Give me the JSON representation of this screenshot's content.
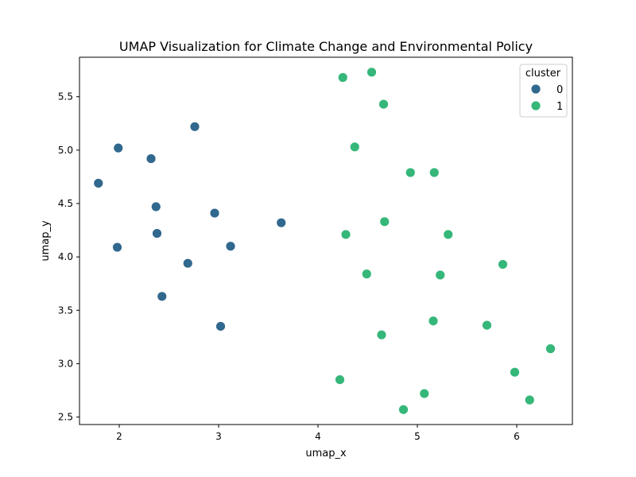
{
  "chart_data": {
    "type": "scatter",
    "title": "UMAP Visualization for Climate Change and Environmental Policy",
    "xlabel": "umap_x",
    "ylabel": "umap_y",
    "xlim": [
      1.6,
      6.56
    ],
    "ylim": [
      2.43,
      5.87
    ],
    "xticks": [
      2,
      3,
      4,
      5,
      6
    ],
    "xtick_labels": [
      "2",
      "3",
      "4",
      "5",
      "6"
    ],
    "yticks": [
      2.5,
      3.0,
      3.5,
      4.0,
      4.5,
      5.0,
      5.5
    ],
    "ytick_labels": [
      "2.5",
      "3.0",
      "3.5",
      "4.0",
      "4.5",
      "5.0",
      "5.5"
    ],
    "grid": false,
    "legend": {
      "title": "cluster",
      "placement": "upper-right"
    },
    "series": [
      {
        "name": "0",
        "color": "#31688e",
        "points": [
          {
            "x": 1.79,
            "y": 4.69
          },
          {
            "x": 1.99,
            "y": 5.02
          },
          {
            "x": 1.98,
            "y": 4.09
          },
          {
            "x": 2.32,
            "y": 4.92
          },
          {
            "x": 2.37,
            "y": 4.47
          },
          {
            "x": 2.38,
            "y": 4.22
          },
          {
            "x": 2.43,
            "y": 3.63
          },
          {
            "x": 2.69,
            "y": 3.94
          },
          {
            "x": 2.76,
            "y": 5.22
          },
          {
            "x": 2.96,
            "y": 4.41
          },
          {
            "x": 3.02,
            "y": 3.35
          },
          {
            "x": 3.12,
            "y": 4.1
          },
          {
            "x": 3.63,
            "y": 4.32
          }
        ]
      },
      {
        "name": "1",
        "color": "#35b779",
        "points": [
          {
            "x": 4.25,
            "y": 5.68
          },
          {
            "x": 4.54,
            "y": 5.73
          },
          {
            "x": 4.66,
            "y": 5.43
          },
          {
            "x": 4.37,
            "y": 5.03
          },
          {
            "x": 4.93,
            "y": 4.79
          },
          {
            "x": 5.17,
            "y": 4.79
          },
          {
            "x": 4.28,
            "y": 4.21
          },
          {
            "x": 4.67,
            "y": 4.33
          },
          {
            "x": 5.31,
            "y": 4.21
          },
          {
            "x": 4.49,
            "y": 3.84
          },
          {
            "x": 5.23,
            "y": 3.83
          },
          {
            "x": 5.86,
            "y": 3.93
          },
          {
            "x": 5.16,
            "y": 3.4
          },
          {
            "x": 5.7,
            "y": 3.36
          },
          {
            "x": 4.64,
            "y": 3.27
          },
          {
            "x": 6.34,
            "y": 3.14
          },
          {
            "x": 5.98,
            "y": 2.92
          },
          {
            "x": 4.22,
            "y": 2.85
          },
          {
            "x": 5.07,
            "y": 2.72
          },
          {
            "x": 6.13,
            "y": 2.66
          },
          {
            "x": 4.86,
            "y": 2.57
          }
        ]
      }
    ]
  }
}
